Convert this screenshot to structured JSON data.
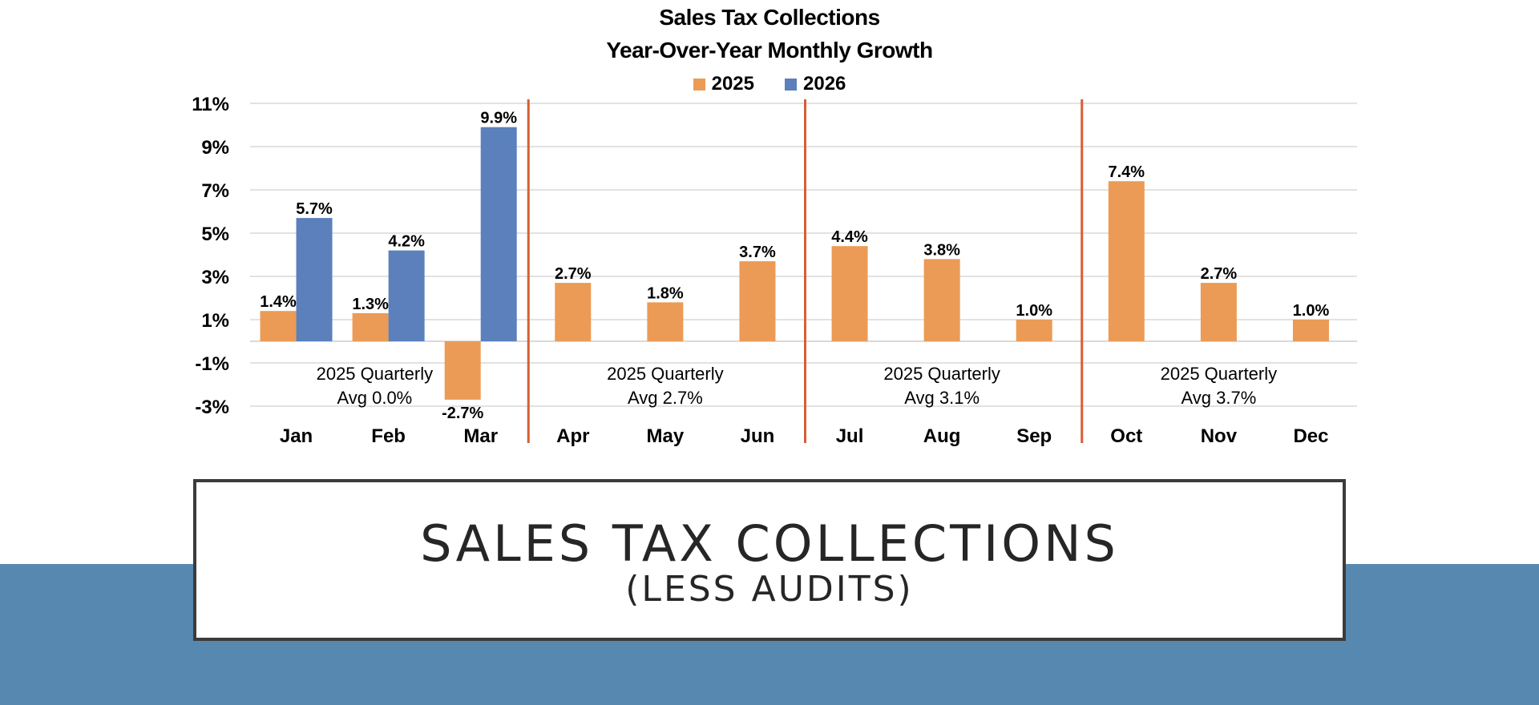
{
  "slide": {
    "heading": "SALES TAX COLLECTIONS",
    "subheading": "(LESS AUDITS)",
    "band_color": "#5789b0"
  },
  "chart_data": {
    "type": "bar",
    "title": "Sales Tax Collections",
    "subtitle": "Year-Over-Year Monthly Growth",
    "categories": [
      "Jan",
      "Feb",
      "Mar",
      "Apr",
      "May",
      "Jun",
      "Jul",
      "Aug",
      "Sep",
      "Oct",
      "Nov",
      "Dec"
    ],
    "series": [
      {
        "name": "2025",
        "color": "#eb9b55",
        "values": [
          1.4,
          1.3,
          -2.7,
          2.7,
          1.8,
          3.7,
          4.4,
          3.8,
          1.0,
          7.4,
          2.7,
          1.0
        ],
        "labels": [
          "1.4%",
          "1.3%",
          "-2.7%",
          "2.7%",
          "1.8%",
          "3.7%",
          "4.4%",
          "3.8%",
          "1.0%",
          "7.4%",
          "2.7%",
          "1.0%"
        ]
      },
      {
        "name": "2026",
        "color": "#5b80bc",
        "values": [
          5.7,
          4.2,
          9.9,
          null,
          null,
          null,
          null,
          null,
          null,
          null,
          null,
          null
        ],
        "labels": [
          "5.7%",
          "4.2%",
          "9.9%",
          "",
          "",
          "",
          "",
          "",
          "",
          "",
          "",
          ""
        ]
      }
    ],
    "yticks": [
      "11%",
      "9%",
      "7%",
      "5%",
      "3%",
      "1%",
      "-1%",
      "-3%"
    ],
    "ytick_values": [
      11,
      9,
      7,
      5,
      3,
      1,
      -1,
      -3
    ],
    "ylim": [
      -3,
      11
    ],
    "grid": true,
    "legend_position": "top-center",
    "quarter_divider_color": "#d65f34",
    "quarter_annotations": [
      {
        "line1": "2025 Quarterly",
        "line2": "Avg 0.0%"
      },
      {
        "line1": "2025 Quarterly",
        "line2": "Avg 2.7%"
      },
      {
        "line1": "2025 Quarterly",
        "line2": "Avg 3.1%"
      },
      {
        "line1": "2025 Quarterly",
        "line2": "Avg 3.7%"
      }
    ]
  }
}
